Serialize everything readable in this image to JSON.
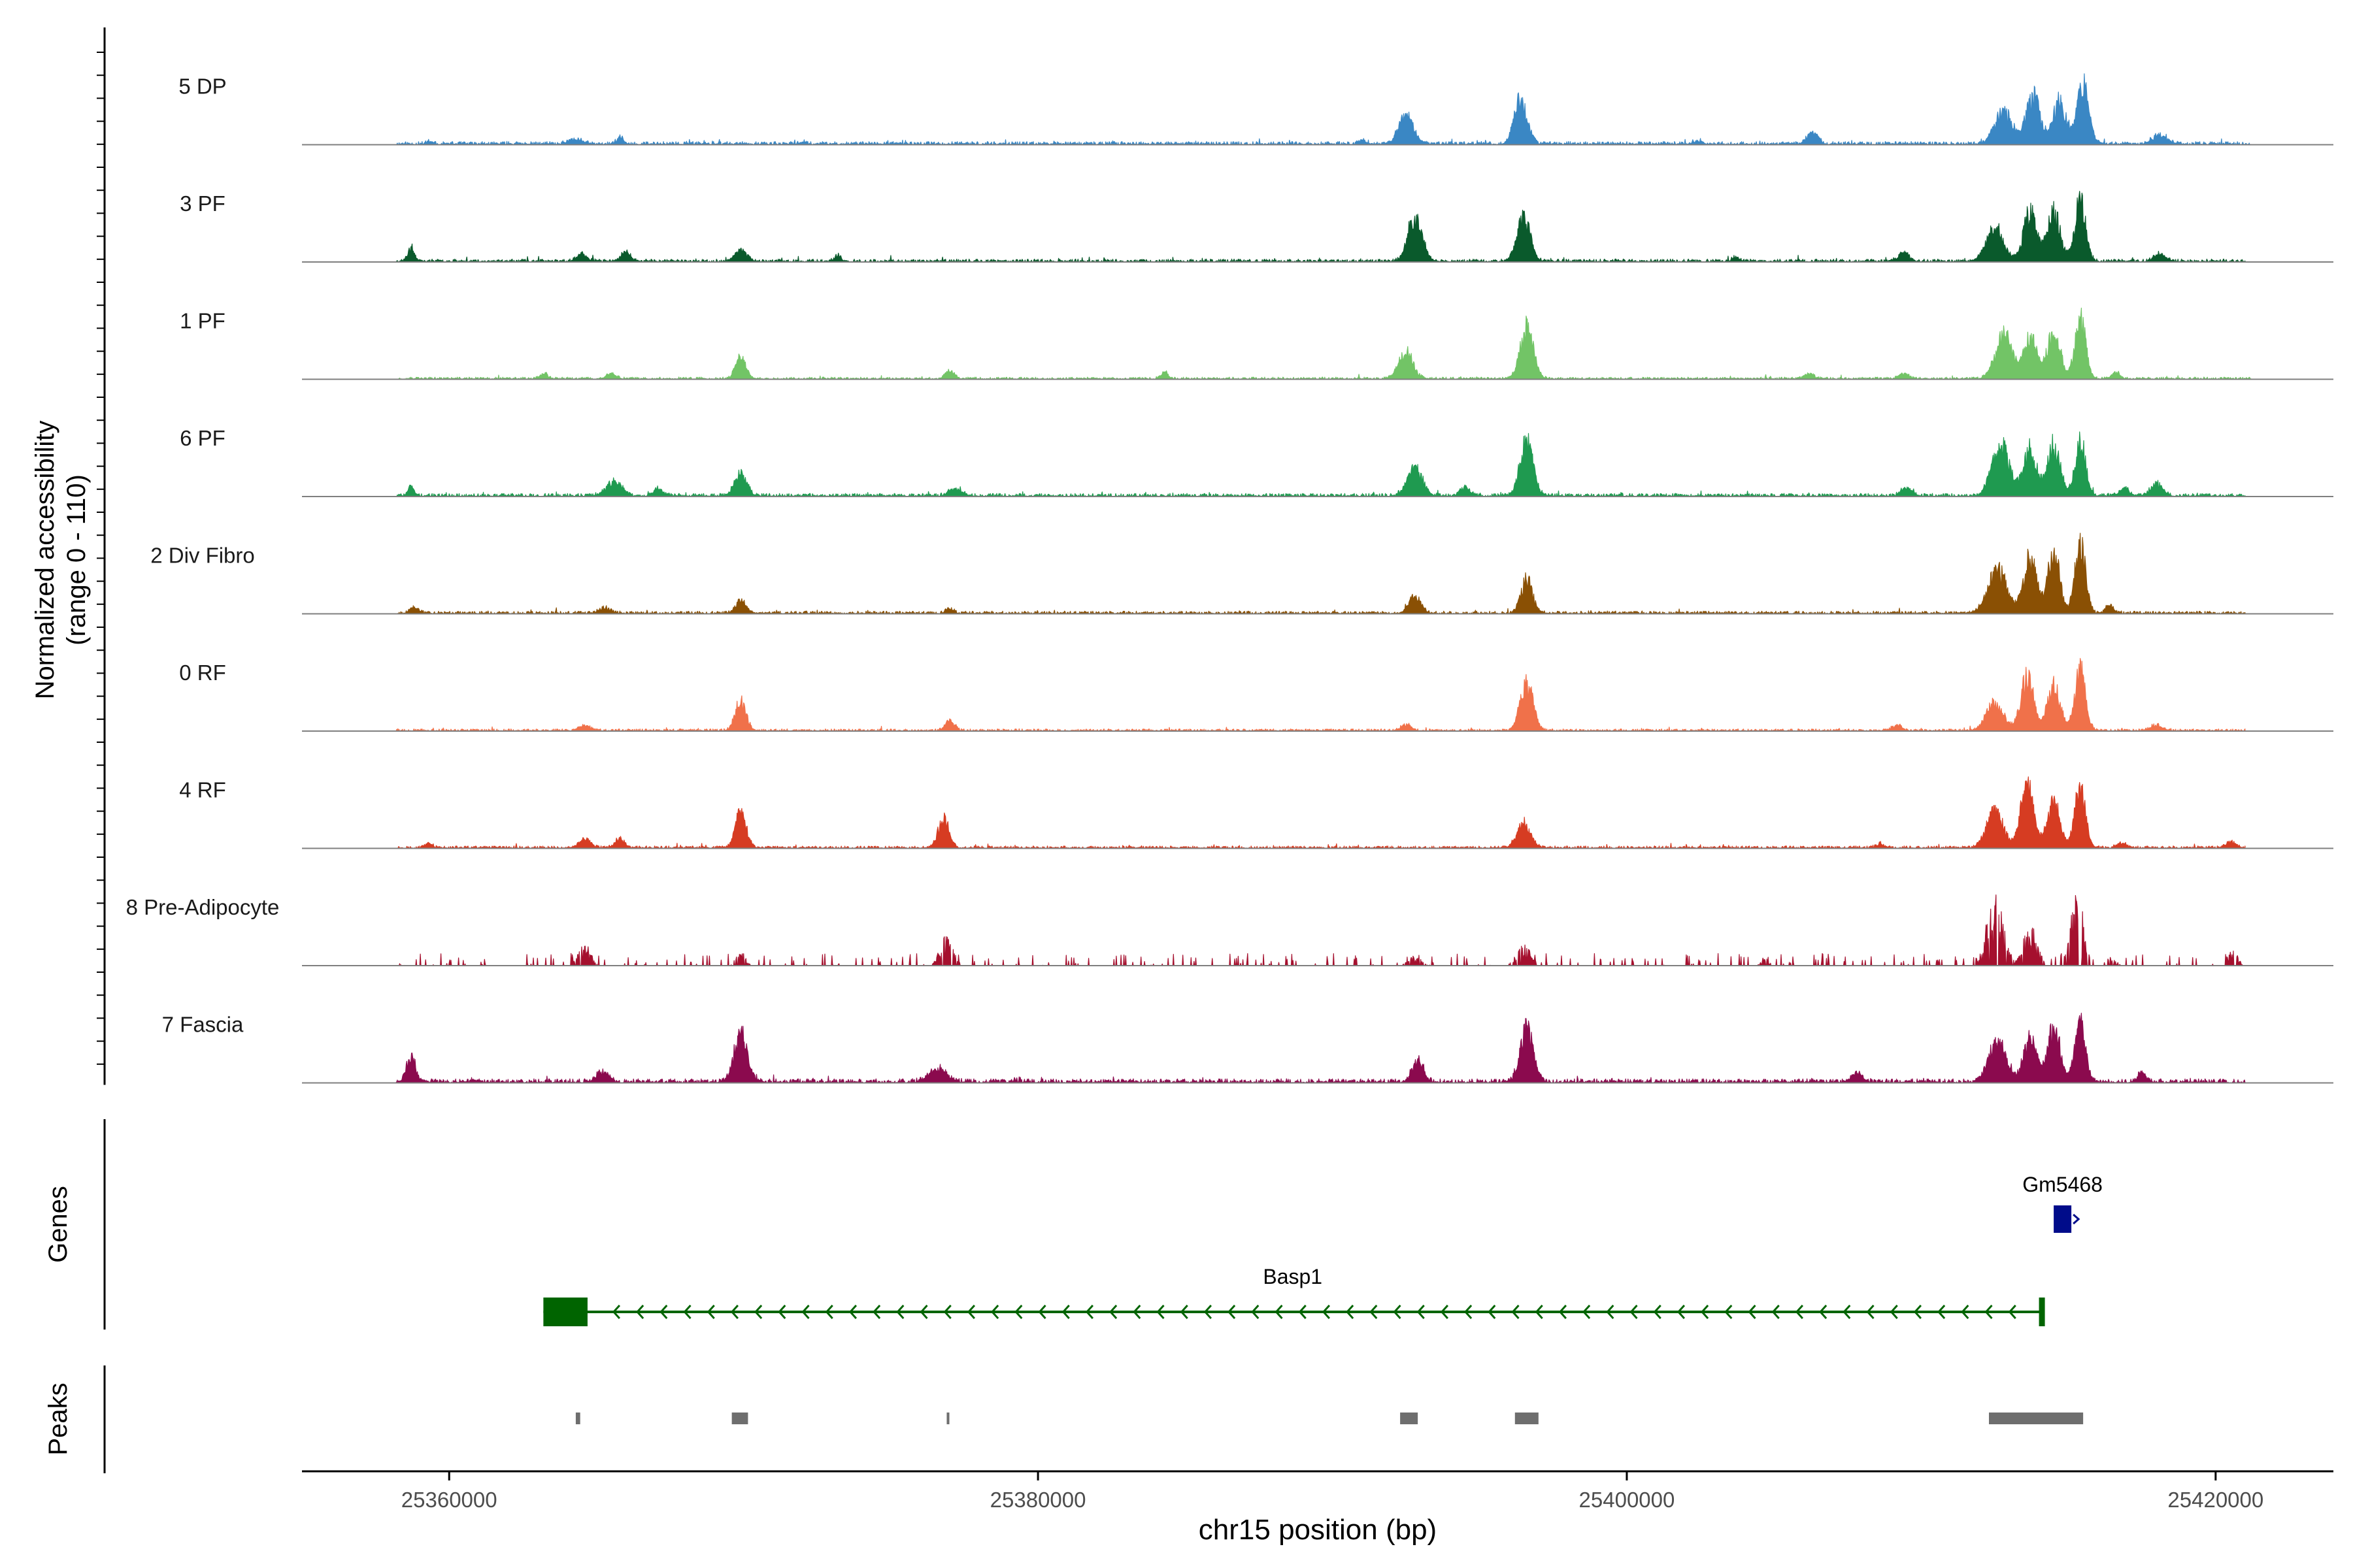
{
  "chart_data": {
    "type": "area",
    "title": "",
    "ylabel_line1": "Normalized accessibility",
    "ylabel_line2": "(range 0 - 110)",
    "ylim": [
      0,
      110
    ],
    "xlabel": "chr15 position (bp)",
    "xlim": [
      25355000,
      25424000
    ],
    "x_ticks": [
      {
        "value": 25360000,
        "label": "25360000"
      },
      {
        "value": 25380000,
        "label": "25380000"
      },
      {
        "value": 25400000,
        "label": "25400000"
      },
      {
        "value": 25420000,
        "label": "25420000"
      }
    ],
    "tracks": [
      {
        "name": "5 DP",
        "color": "#3a87c4",
        "noise": 2.6,
        "seed": 11,
        "range": [
          25358200,
          25421200
        ],
        "peaks": [
          [
            25359300,
            5,
            100
          ],
          [
            25364300,
            7,
            260
          ],
          [
            25365800,
            10,
            120
          ],
          [
            25372000,
            4,
            100
          ],
          [
            25391000,
            7,
            100
          ],
          [
            25392500,
            48,
            240
          ],
          [
            25396400,
            75,
            220
          ],
          [
            25402400,
            6,
            140
          ],
          [
            25406300,
            18,
            180
          ],
          [
            25412800,
            52,
            300
          ],
          [
            25413800,
            78,
            240
          ],
          [
            25414700,
            70,
            220
          ],
          [
            25415500,
            95,
            200
          ],
          [
            25418100,
            14,
            260
          ]
        ]
      },
      {
        "name": "3 PF",
        "color": "#0a5a2c",
        "noise": 2.4,
        "seed": 23,
        "range": [
          25358200,
          25421000
        ],
        "peaks": [
          [
            25358700,
            22,
            110
          ],
          [
            25364500,
            12,
            180
          ],
          [
            25366000,
            16,
            150
          ],
          [
            25369900,
            20,
            200
          ],
          [
            25373200,
            9,
            100
          ],
          [
            25392800,
            72,
            240
          ],
          [
            25396500,
            70,
            220
          ],
          [
            25403700,
            6,
            120
          ],
          [
            25409400,
            16,
            160
          ],
          [
            25412500,
            58,
            280
          ],
          [
            25413700,
            80,
            220
          ],
          [
            25414500,
            78,
            220
          ],
          [
            25415400,
            105,
            180
          ],
          [
            25418100,
            11,
            200
          ]
        ]
      },
      {
        "name": "1 PF",
        "color": "#72c466",
        "noise": 1.8,
        "seed": 37,
        "range": [
          25358200,
          25421200
        ],
        "peaks": [
          [
            25363200,
            9,
            140
          ],
          [
            25365500,
            8,
            160
          ],
          [
            25369900,
            34,
            180
          ],
          [
            25377000,
            14,
            150
          ],
          [
            25384300,
            10,
            120
          ],
          [
            25392500,
            42,
            240
          ],
          [
            25396600,
            84,
            220
          ],
          [
            25406200,
            8,
            160
          ],
          [
            25409400,
            9,
            160
          ],
          [
            25412800,
            72,
            280
          ],
          [
            25413700,
            72,
            220
          ],
          [
            25414500,
            76,
            220
          ],
          [
            25415400,
            100,
            180
          ],
          [
            25416600,
            9,
            140
          ]
        ]
      },
      {
        "name": "6 PF",
        "color": "#1f9a50",
        "noise": 2.6,
        "seed": 53,
        "range": [
          25358200,
          25421000
        ],
        "peaks": [
          [
            25358700,
            14,
            120
          ],
          [
            25365600,
            22,
            260
          ],
          [
            25367100,
            12,
            160
          ],
          [
            25369900,
            36,
            200
          ],
          [
            25377200,
            12,
            220
          ],
          [
            25392800,
            44,
            260
          ],
          [
            25394500,
            14,
            180
          ],
          [
            25396600,
            90,
            220
          ],
          [
            25409500,
            13,
            180
          ],
          [
            25412700,
            82,
            300
          ],
          [
            25413700,
            74,
            220
          ],
          [
            25414500,
            80,
            220
          ],
          [
            25415400,
            88,
            180
          ],
          [
            25416900,
            12,
            160
          ],
          [
            25418000,
            20,
            200
          ]
        ]
      },
      {
        "name": "2 Div Fibro",
        "color": "#8a5004",
        "noise": 2.2,
        "seed": 67,
        "range": [
          25358200,
          25421000
        ],
        "peaks": [
          [
            25358800,
            8,
            160
          ],
          [
            25365300,
            8,
            200
          ],
          [
            25369900,
            20,
            180
          ],
          [
            25377000,
            8,
            120
          ],
          [
            25392800,
            28,
            200
          ],
          [
            25396600,
            52,
            200
          ],
          [
            25412600,
            70,
            320
          ],
          [
            25413700,
            90,
            220
          ],
          [
            25414500,
            98,
            200
          ],
          [
            25415400,
            110,
            180
          ],
          [
            25416400,
            12,
            140
          ]
        ]
      },
      {
        "name": "0 RF",
        "color": "#f0714a",
        "noise": 1.8,
        "seed": 79,
        "range": [
          25358200,
          25421000
        ],
        "peaks": [
          [
            25364600,
            8,
            180
          ],
          [
            25369900,
            48,
            180
          ],
          [
            25377000,
            16,
            160
          ],
          [
            25392500,
            10,
            180
          ],
          [
            25396600,
            74,
            220
          ],
          [
            25409200,
            8,
            160
          ],
          [
            25412500,
            45,
            280
          ],
          [
            25413600,
            86,
            220
          ],
          [
            25414500,
            72,
            220
          ],
          [
            25415400,
            100,
            180
          ],
          [
            25418000,
            9,
            200
          ]
        ]
      },
      {
        "name": "4 RF",
        "color": "#d63c22",
        "noise": 2.0,
        "seed": 97,
        "range": [
          25358200,
          25421000
        ],
        "peaks": [
          [
            25359300,
            7,
            120
          ],
          [
            25364600,
            14,
            200
          ],
          [
            25365800,
            14,
            160
          ],
          [
            25369900,
            62,
            180
          ],
          [
            25376800,
            48,
            180
          ],
          [
            25396500,
            40,
            220
          ],
          [
            25408600,
            7,
            120
          ],
          [
            25412500,
            60,
            280
          ],
          [
            25413600,
            100,
            220
          ],
          [
            25414500,
            72,
            220
          ],
          [
            25415400,
            98,
            180
          ],
          [
            25416800,
            8,
            160
          ],
          [
            25420500,
            9,
            160
          ]
        ]
      },
      {
        "name": "8 Pre-Adipocyte",
        "color": "#a5102e",
        "noise": 0,
        "seed": 113,
        "range": [
          25358200,
          25421000
        ],
        "spiky": true,
        "spike_density": 0.1,
        "spike_max": 16,
        "peaks": [
          [
            25364600,
            30,
            200
          ],
          [
            25369900,
            20,
            150
          ],
          [
            25376900,
            42,
            220
          ],
          [
            25392800,
            14,
            200
          ],
          [
            25396500,
            28,
            240
          ],
          [
            25404700,
            10,
            120
          ],
          [
            25412500,
            98,
            280
          ],
          [
            25413700,
            55,
            240
          ],
          [
            25415300,
            110,
            200
          ],
          [
            25416500,
            14,
            120
          ],
          [
            25420600,
            24,
            140
          ]
        ]
      },
      {
        "name": "7 Fascia",
        "color": "#8b0a4e",
        "noise": 3.4,
        "seed": 131,
        "range": [
          25358200,
          25421000
        ],
        "peaks": [
          [
            25358700,
            40,
            150
          ],
          [
            25365200,
            18,
            200
          ],
          [
            25369900,
            80,
            220
          ],
          [
            25376600,
            20,
            300
          ],
          [
            25392900,
            30,
            200
          ],
          [
            25396600,
            88,
            220
          ],
          [
            25407800,
            14,
            200
          ],
          [
            25412600,
            65,
            300
          ],
          [
            25413700,
            70,
            220
          ],
          [
            25414500,
            86,
            220
          ],
          [
            25415400,
            98,
            180
          ],
          [
            25417500,
            16,
            140
          ]
        ]
      }
    ],
    "genes_label": "Genes",
    "genes": [
      {
        "name": "Gm5468",
        "start": 25414500,
        "end": 25415100,
        "strand": "+",
        "color": "#000c8a"
      },
      {
        "name": "Basp1",
        "start": 25363200,
        "end": 25414100,
        "strand": "-",
        "color": "#006400",
        "exons": [
          [
            25363200,
            25364700
          ],
          [
            25414000,
            25414200
          ]
        ]
      }
    ],
    "peaks_label": "Peaks",
    "peak_regions": [
      [
        25364300,
        25364450
      ],
      [
        25369600,
        25370150
      ],
      [
        25376900,
        25376990
      ],
      [
        25392300,
        25392900
      ],
      [
        25396200,
        25397000
      ],
      [
        25412300,
        25415500
      ]
    ]
  }
}
